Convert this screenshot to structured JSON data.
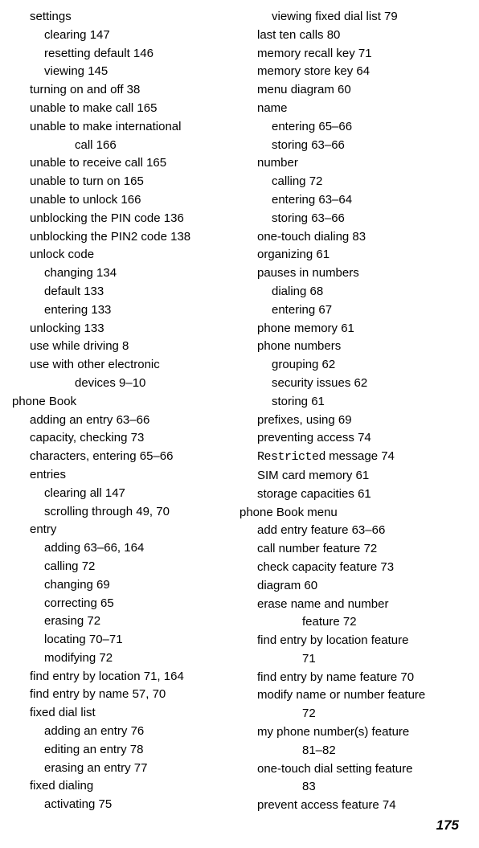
{
  "pageNumber": "175",
  "columns": [
    [
      {
        "cls": "i1 line",
        "text": "settings",
        "bind": "c0.0"
      },
      {
        "cls": "i2 line",
        "text": "clearing  147",
        "bind": "c0.1"
      },
      {
        "cls": "i2 line",
        "text": "resetting default  146",
        "bind": "c0.2"
      },
      {
        "cls": "i2 line",
        "text": "viewing  145",
        "bind": "c0.3"
      },
      {
        "cls": "i1 line",
        "text": "turning on and off  38",
        "bind": "c0.4"
      },
      {
        "cls": "i1 line",
        "text": "unable to make call  165",
        "bind": "c0.5"
      },
      {
        "cls": "i1 line",
        "text": "unable to make international",
        "bind": "c0.6"
      },
      {
        "cls": "i3 line",
        "text": "call  166",
        "bind": "c0.7"
      },
      {
        "cls": "i1 line",
        "text": "unable to receive call  165",
        "bind": "c0.8"
      },
      {
        "cls": "i1 line",
        "text": "unable to turn on  165",
        "bind": "c0.9"
      },
      {
        "cls": "i1 line",
        "text": "unable to unlock  166",
        "bind": "c0.10"
      },
      {
        "cls": "i1 line",
        "text": "unblocking the PIN code  136",
        "bind": "c0.11"
      },
      {
        "cls": "i1 line",
        "text": "unblocking the PIN2 code  138",
        "bind": "c0.12"
      },
      {
        "cls": "i1 line",
        "text": "unlock code",
        "bind": "c0.13"
      },
      {
        "cls": "i2 line",
        "text": "changing  134",
        "bind": "c0.14"
      },
      {
        "cls": "i2 line",
        "text": "default  133",
        "bind": "c0.15"
      },
      {
        "cls": "i2 line",
        "text": "entering  133",
        "bind": "c0.16"
      },
      {
        "cls": "i1 line",
        "text": "unlocking  133",
        "bind": "c0.17"
      },
      {
        "cls": "i1 line",
        "text": "use while driving  8",
        "bind": "c0.18"
      },
      {
        "cls": "i1 line",
        "text": "use with other electronic",
        "bind": "c0.19"
      },
      {
        "cls": "i3 line",
        "text": "devices  9–10",
        "bind": "c0.20"
      },
      {
        "cls": "i0 line",
        "text": "phone Book",
        "bind": "c0.21"
      },
      {
        "cls": "i1 line",
        "text": "adding an entry  63–66",
        "bind": "c0.22"
      },
      {
        "cls": "i1 line",
        "text": "capacity, checking  73",
        "bind": "c0.23"
      },
      {
        "cls": "i1 line",
        "text": "characters, entering  65–66",
        "bind": "c0.24"
      },
      {
        "cls": "i1 line",
        "text": "entries",
        "bind": "c0.25"
      },
      {
        "cls": "i2 line",
        "text": "clearing all  147",
        "bind": "c0.26"
      },
      {
        "cls": "i2 line",
        "text": "scrolling through  49, 70",
        "bind": "c0.27"
      },
      {
        "cls": "i1 line",
        "text": "entry",
        "bind": "c0.28"
      },
      {
        "cls": "i2 line",
        "text": "adding  63–66, 164",
        "bind": "c0.29"
      },
      {
        "cls": "i2 line",
        "text": "calling  72",
        "bind": "c0.30"
      },
      {
        "cls": "i2 line",
        "text": "changing  69",
        "bind": "c0.31"
      },
      {
        "cls": "i2 line",
        "text": "correcting  65",
        "bind": "c0.32"
      },
      {
        "cls": "i2 line",
        "text": "erasing  72",
        "bind": "c0.33"
      },
      {
        "cls": "i2 line",
        "text": "locating  70–71",
        "bind": "c0.34"
      },
      {
        "cls": "i2 line",
        "text": "modifying  72",
        "bind": "c0.35"
      },
      {
        "cls": "i1 line",
        "text": "find entry by location  71, 164",
        "bind": "c0.36"
      },
      {
        "cls": "i1 line",
        "text": "find entry by name  57, 70",
        "bind": "c0.37"
      },
      {
        "cls": "i1 line",
        "text": "fixed dial list",
        "bind": "c0.38"
      },
      {
        "cls": "i2 line",
        "text": "adding an entry  76",
        "bind": "c0.39"
      },
      {
        "cls": "i2 line",
        "text": "editing an entry  78",
        "bind": "c0.40"
      },
      {
        "cls": "i2 line",
        "text": "erasing an entry  77",
        "bind": "c0.41"
      },
      {
        "cls": "i1 line",
        "text": "fixed dialing",
        "bind": "c0.42"
      },
      {
        "cls": "i2 line",
        "text": "activating  75",
        "bind": "c0.43"
      }
    ],
    [
      {
        "cls": "i2 line",
        "text": "viewing fixed dial list  79",
        "bind": "c1.0"
      },
      {
        "cls": "i1 line",
        "text": "last ten calls  80",
        "bind": "c1.1"
      },
      {
        "cls": "i1 line",
        "text": "memory recall key  71",
        "bind": "c1.2"
      },
      {
        "cls": "i1 line",
        "text": "memory store key  64",
        "bind": "c1.3"
      },
      {
        "cls": "i1 line",
        "text": "menu diagram  60",
        "bind": "c1.4"
      },
      {
        "cls": "i1 line",
        "text": "name",
        "bind": "c1.5"
      },
      {
        "cls": "i2 line",
        "text": "entering  65–66",
        "bind": "c1.6"
      },
      {
        "cls": "i2 line",
        "text": "storing  63–66",
        "bind": "c1.7"
      },
      {
        "cls": "i1 line",
        "text": "number",
        "bind": "c1.8"
      },
      {
        "cls": "i2 line",
        "text": "calling  72",
        "bind": "c1.9"
      },
      {
        "cls": "i2 line",
        "text": "entering  63–64",
        "bind": "c1.10"
      },
      {
        "cls": "i2 line",
        "text": "storing  63–66",
        "bind": "c1.11"
      },
      {
        "cls": "i1 line",
        "text": "one-touch dialing  83",
        "bind": "c1.12"
      },
      {
        "cls": "i1 line",
        "text": "organizing  61",
        "bind": "c1.13"
      },
      {
        "cls": "i1 line",
        "text": "pauses in numbers",
        "bind": "c1.14"
      },
      {
        "cls": "i2 line",
        "text": "dialing  68",
        "bind": "c1.15"
      },
      {
        "cls": "i2 line",
        "text": "entering  67",
        "bind": "c1.16"
      },
      {
        "cls": "i1 line",
        "text": "phone memory  61",
        "bind": "c1.17"
      },
      {
        "cls": "i1 line",
        "text": "phone numbers",
        "bind": "c1.18"
      },
      {
        "cls": "i2 line",
        "text": "grouping  62",
        "bind": "c1.19"
      },
      {
        "cls": "i2 line",
        "text": "security issues  62",
        "bind": "c1.20"
      },
      {
        "cls": "i2 line",
        "text": "storing  61",
        "bind": "c1.21"
      },
      {
        "cls": "i1 line",
        "text": "prefixes, using  69",
        "bind": "c1.22"
      },
      {
        "cls": "i1 line",
        "text": "preventing access  74",
        "bind": "c1.23"
      },
      {
        "cls": "i1 line",
        "html": true,
        "mono": "Restricted",
        "suffix": " message  74",
        "bind": "c1.24"
      },
      {
        "cls": "i1 line",
        "text": "SIM card memory  61",
        "bind": "c1.25"
      },
      {
        "cls": "i1 line",
        "text": "storage capacities  61",
        "bind": "c1.26"
      },
      {
        "cls": "i0 line",
        "text": "phone Book menu",
        "bind": "c1.27"
      },
      {
        "cls": "i1 line",
        "text": "add entry feature  63–66",
        "bind": "c1.28"
      },
      {
        "cls": "i1 line",
        "text": "call number feature  72",
        "bind": "c1.29"
      },
      {
        "cls": "i1 line",
        "text": "check capacity feature  73",
        "bind": "c1.30"
      },
      {
        "cls": "i1 line",
        "text": "diagram  60",
        "bind": "c1.31"
      },
      {
        "cls": "i1 line",
        "text": "erase name and number",
        "bind": "c1.32"
      },
      {
        "cls": "i3 line",
        "text": "feature  72",
        "bind": "c1.33"
      },
      {
        "cls": "i1 line",
        "text": "find entry by location feature",
        "bind": "c1.34"
      },
      {
        "cls": "i3 line",
        "text": "71",
        "bind": "c1.35"
      },
      {
        "cls": "i1 line",
        "text": "find entry by name feature  70",
        "bind": "c1.36"
      },
      {
        "cls": "i1 line",
        "text": "modify name or number feature",
        "bind": "c1.37"
      },
      {
        "cls": "i3 line",
        "text": "72",
        "bind": "c1.38"
      },
      {
        "cls": "i1 line",
        "text": "my phone number(s) feature",
        "bind": "c1.39"
      },
      {
        "cls": "i3 line",
        "text": "81–82",
        "bind": "c1.40"
      },
      {
        "cls": "i1 line",
        "text": "one-touch dial setting feature",
        "bind": "c1.41"
      },
      {
        "cls": "i3 line",
        "text": "83",
        "bind": "c1.42"
      },
      {
        "cls": "i1 line",
        "text": "prevent access feature  74",
        "bind": "c1.43"
      }
    ]
  ]
}
